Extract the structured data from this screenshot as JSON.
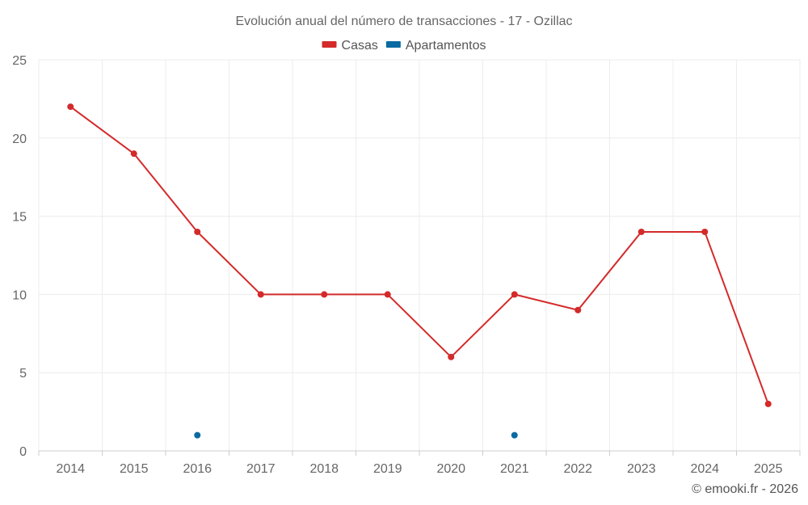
{
  "chart_data": {
    "type": "line",
    "title": "Evolución anual del número de transacciones - 17 - Ozillac",
    "xlabel": "",
    "ylabel": "",
    "categories": [
      "2014",
      "2015",
      "2016",
      "2017",
      "2018",
      "2019",
      "2020",
      "2021",
      "2022",
      "2023",
      "2024",
      "2025"
    ],
    "ylim": [
      0,
      25
    ],
    "yticks": [
      0,
      5,
      10,
      15,
      20,
      25
    ],
    "grid": true,
    "legend_position": "top-center",
    "series": [
      {
        "name": "Casas",
        "color": "#d42a2a",
        "values": [
          22,
          19,
          14,
          10,
          10,
          10,
          6,
          10,
          9,
          14,
          14,
          3
        ]
      },
      {
        "name": "Apartamentos",
        "color": "#0a6aa1",
        "values": [
          null,
          null,
          1,
          null,
          null,
          null,
          null,
          1,
          null,
          null,
          null,
          null
        ]
      }
    ]
  },
  "credit": "© emooki.fr - 2026"
}
